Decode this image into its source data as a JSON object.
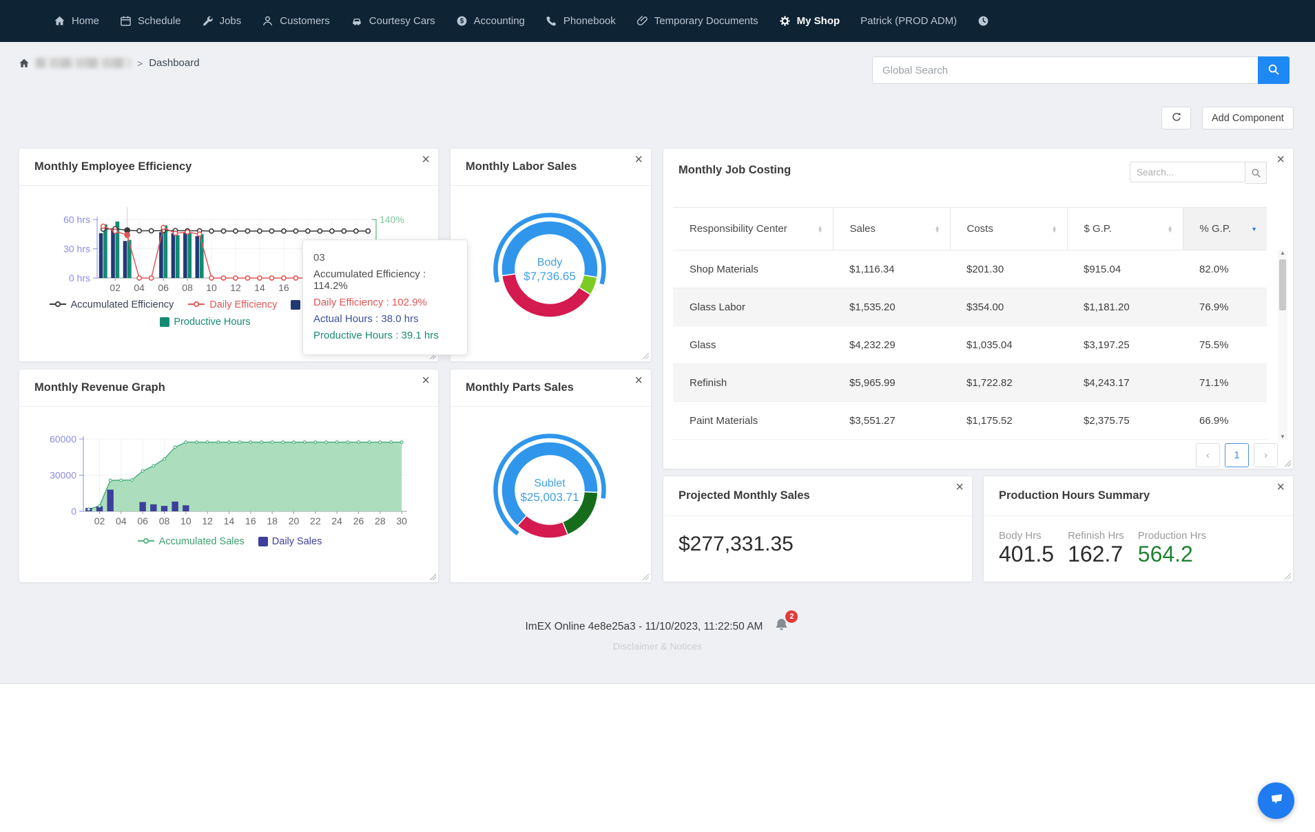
{
  "navbar": {
    "items": [
      {
        "label": "Home",
        "icon": "home"
      },
      {
        "label": "Schedule",
        "icon": "calendar"
      },
      {
        "label": "Jobs",
        "icon": "wrench"
      },
      {
        "label": "Customers",
        "icon": "person"
      },
      {
        "label": "Courtesy Cars",
        "icon": "car"
      },
      {
        "label": "Accounting",
        "icon": "dollar-circle"
      },
      {
        "label": "Phonebook",
        "icon": "phone"
      },
      {
        "label": "Temporary Documents",
        "icon": "paperclip"
      },
      {
        "label": "My Shop",
        "icon": "gear",
        "active": true
      }
    ],
    "user": "Patrick (PROD ADM)"
  },
  "breadcrumb": {
    "page": "Dashboard"
  },
  "global_search": {
    "placeholder": "Global Search"
  },
  "toolbar": {
    "add_component": "Add Component"
  },
  "cards": {
    "efficiency": {
      "title": "Monthly Employee Efficiency",
      "legend_rows": [
        [
          {
            "marker": "line",
            "color": "#3a3a3a",
            "label": "Accumulated Efficiency",
            "label_color": "#3a3f56"
          },
          {
            "marker": "line",
            "color": "#e15656",
            "label": "Daily Efficiency",
            "label_color": "#e15656"
          },
          {
            "marker": "box",
            "color": "#223a74",
            "label": "Actual Hours",
            "label_color": "#223a74"
          }
        ],
        [
          {
            "marker": "box",
            "color": "#128a73",
            "label": "Productive Hours",
            "label_color": "#128a73"
          }
        ]
      ],
      "tooltip": {
        "title": "03",
        "lines": [
          {
            "text": "Accumulated Efficiency : 114.2%",
            "color": "#4a4a4a"
          },
          {
            "text": "Daily Efficiency : 102.9%",
            "color": "#e15656"
          },
          {
            "text": "Actual Hours : 38.0 hrs",
            "color": "#3d4f9e"
          },
          {
            "text": "Productive Hours : 39.1 hrs",
            "color": "#1a8a72"
          }
        ]
      },
      "chart_data": {
        "type": "bar+line",
        "days": 23,
        "x_tick_labels": [
          "02",
          "04",
          "06",
          "08",
          "10",
          "12",
          "14",
          "16",
          "18",
          "20",
          "22"
        ],
        "left_axis": {
          "ticks": [
            "0 hrs",
            "30 hrs",
            "60 hrs"
          ],
          "max": 60
        },
        "right_axis": {
          "tick_label": "140%",
          "max": 140
        },
        "highlight_day": 3,
        "series": [
          {
            "name": "Actual Hours",
            "type": "bar",
            "color": "#223a74",
            "axis": "left",
            "values": [
              46,
              50,
              38,
              0,
              0,
              47,
              46,
              47,
              43,
              0,
              0,
              0,
              0,
              0,
              0,
              0,
              0,
              0,
              0,
              0,
              0,
              0,
              0
            ]
          },
          {
            "name": "Productive Hours",
            "type": "bar",
            "color": "#128a73",
            "axis": "left",
            "values": [
              55,
              58,
              39.1,
              0,
              0,
              54,
              44,
              47,
              45,
              0,
              0,
              0,
              0,
              0,
              0,
              0,
              0,
              0,
              0,
              0,
              0,
              0,
              0
            ]
          },
          {
            "name": "Accumulated Efficiency",
            "type": "line",
            "color": "#3a3a3a",
            "axis": "right",
            "values": [
              117,
              118,
              114.2,
              113,
              113,
              113.5,
              113.5,
              113,
              113,
              112.5,
              112.5,
              112.5,
              112.5,
              112.5,
              112.5,
              112.5,
              112.5,
              112.5,
              112.5,
              112.5,
              112.5,
              112.5,
              112.5
            ]
          },
          {
            "name": "Daily Efficiency",
            "type": "line",
            "color": "#e15656",
            "axis": "right",
            "values": [
              124,
              112,
              102.9,
              0,
              0,
              121,
              107,
              110,
              105,
              0,
              0,
              0,
              0,
              0,
              0,
              0,
              0,
              0,
              0,
              0,
              0,
              0,
              0
            ]
          }
        ]
      }
    },
    "labor_sales": {
      "title": "Monthly Labor Sales",
      "chart_data": {
        "type": "pie",
        "center_label": {
          "title": "Body",
          "value": "$7,736.65",
          "color": "#41a0e8"
        },
        "slices": [
          {
            "name": "Body",
            "start_deg": 262,
            "sweep_deg": 198,
            "color": "#2f96ec",
            "selected": true
          },
          {
            "name": "slice-2",
            "start_deg": 100,
            "sweep_deg": 22,
            "color": "#7ccb23"
          },
          {
            "name": "slice-3",
            "start_deg": 122,
            "sweep_deg": 140,
            "color": "#d41a4e"
          }
        ],
        "highlight_arc": {
          "start_deg": 256,
          "sweep_deg": 210,
          "color": "#2f96ec"
        }
      }
    },
    "job_costing": {
      "title": "Monthly Job Costing",
      "search_placeholder": "Search...",
      "columns": [
        {
          "label": "Responsibility Center",
          "sort": "none"
        },
        {
          "label": "Sales",
          "sort": "none"
        },
        {
          "label": "Costs",
          "sort": "none"
        },
        {
          "label": "$ G.P.",
          "sort": "none"
        },
        {
          "label": "% G.P.",
          "sort": "desc"
        }
      ],
      "rows": [
        [
          "Shop Materials",
          "$1,116.34",
          "$201.30",
          "$915.04",
          "82.0%"
        ],
        [
          "Glass Labor",
          "$1,535.20",
          "$354.00",
          "$1,181.20",
          "76.9%"
        ],
        [
          "Glass",
          "$4,232.29",
          "$1,035.04",
          "$3,197.25",
          "75.5%"
        ],
        [
          "Refinish",
          "$5,965.99",
          "$1,722.82",
          "$4,243.17",
          "71.1%"
        ],
        [
          "Paint Materials",
          "$3,551.27",
          "$1,175.52",
          "$2,375.75",
          "66.9%"
        ]
      ],
      "pagination": {
        "page": "1"
      }
    },
    "revenue": {
      "title": "Monthly Revenue Graph",
      "legend_rows": [
        [
          {
            "marker": "line",
            "color": "#53b183",
            "label": "Accumulated Sales",
            "label_color": "#3da06e"
          },
          {
            "marker": "box",
            "color": "#3c3f9c",
            "label": "Daily Sales",
            "label_color": "#3c3f9c"
          }
        ]
      ],
      "chart_data": {
        "type": "area+bar",
        "days": 30,
        "x_tick_labels": [
          "02",
          "04",
          "06",
          "08",
          "10",
          "12",
          "14",
          "16",
          "18",
          "20",
          "22",
          "24",
          "26",
          "28",
          "30"
        ],
        "y_axis": {
          "ticks": [
            "0",
            "30000",
            "60000"
          ],
          "max": 60000
        },
        "series": [
          {
            "name": "Accumulated Sales",
            "type": "area",
            "line_color": "#53b183",
            "fill_color": "#a8dcb9",
            "values": [
              1700,
              4400,
              25700,
              25800,
              26000,
              33500,
              37700,
              43500,
              53200,
              57400,
              57400,
              57400,
              57400,
              57400,
              57400,
              57400,
              57400,
              57400,
              57400,
              57400,
              57400,
              57400,
              57400,
              57400,
              57400,
              57400,
              57400,
              57400,
              57400,
              57400
            ]
          },
          {
            "name": "Daily Sales",
            "type": "bar",
            "color": "#3c3f9c",
            "values": [
              2800,
              4200,
              18000,
              0,
              0,
              7700,
              5800,
              4500,
              8100,
              5000,
              0,
              0,
              0,
              0,
              0,
              0,
              0,
              0,
              0,
              0,
              0,
              0,
              0,
              0,
              0,
              0,
              0,
              0,
              0,
              0
            ]
          }
        ]
      }
    },
    "parts_sales": {
      "title": "Monthly Parts Sales",
      "chart_data": {
        "type": "pie",
        "center_label": {
          "title": "Sublet",
          "value": "$25,003.71",
          "color": "#41a0e8"
        },
        "slices": [
          {
            "name": "Sublet",
            "start_deg": 222,
            "sweep_deg": 231,
            "color": "#2f96ec",
            "selected": true
          },
          {
            "name": "slice-2",
            "start_deg": 93,
            "sweep_deg": 65,
            "color": "#156d1c"
          },
          {
            "name": "slice-3",
            "start_deg": 158,
            "sweep_deg": 64,
            "color": "#d41a4e"
          }
        ],
        "highlight_arc": {
          "start_deg": 216,
          "sweep_deg": 243,
          "color": "#2f96ec"
        }
      }
    },
    "projected": {
      "title": "Projected Monthly Sales",
      "value": "$277,331.35"
    },
    "production": {
      "title": "Production Hours Summary",
      "metrics": [
        {
          "label": "Body Hrs",
          "value": "401.5",
          "color": "#2b2b2b"
        },
        {
          "label": "Refinish Hrs",
          "value": "162.7",
          "color": "#2b2b2b"
        },
        {
          "label": "Production Hrs",
          "value": "564.2",
          "color": "#1e8232"
        }
      ]
    }
  },
  "footer": {
    "status": "ImEX Online 4e8e25a3 - 11/10/2023, 11:22:50 AM",
    "notification_count": "2",
    "link": "Disclaimer & Notices"
  },
  "colors": {
    "navbar_bg": "#0e2334",
    "accent_blue": "#1e88f5",
    "donut_blue": "#2f96ec",
    "crimson": "#d41a4e",
    "lime_green": "#7ccb23",
    "forest_green": "#156d1c",
    "teal": "#128a73",
    "navy_bar": "#223a74",
    "area_green": "#a8dcb9"
  }
}
